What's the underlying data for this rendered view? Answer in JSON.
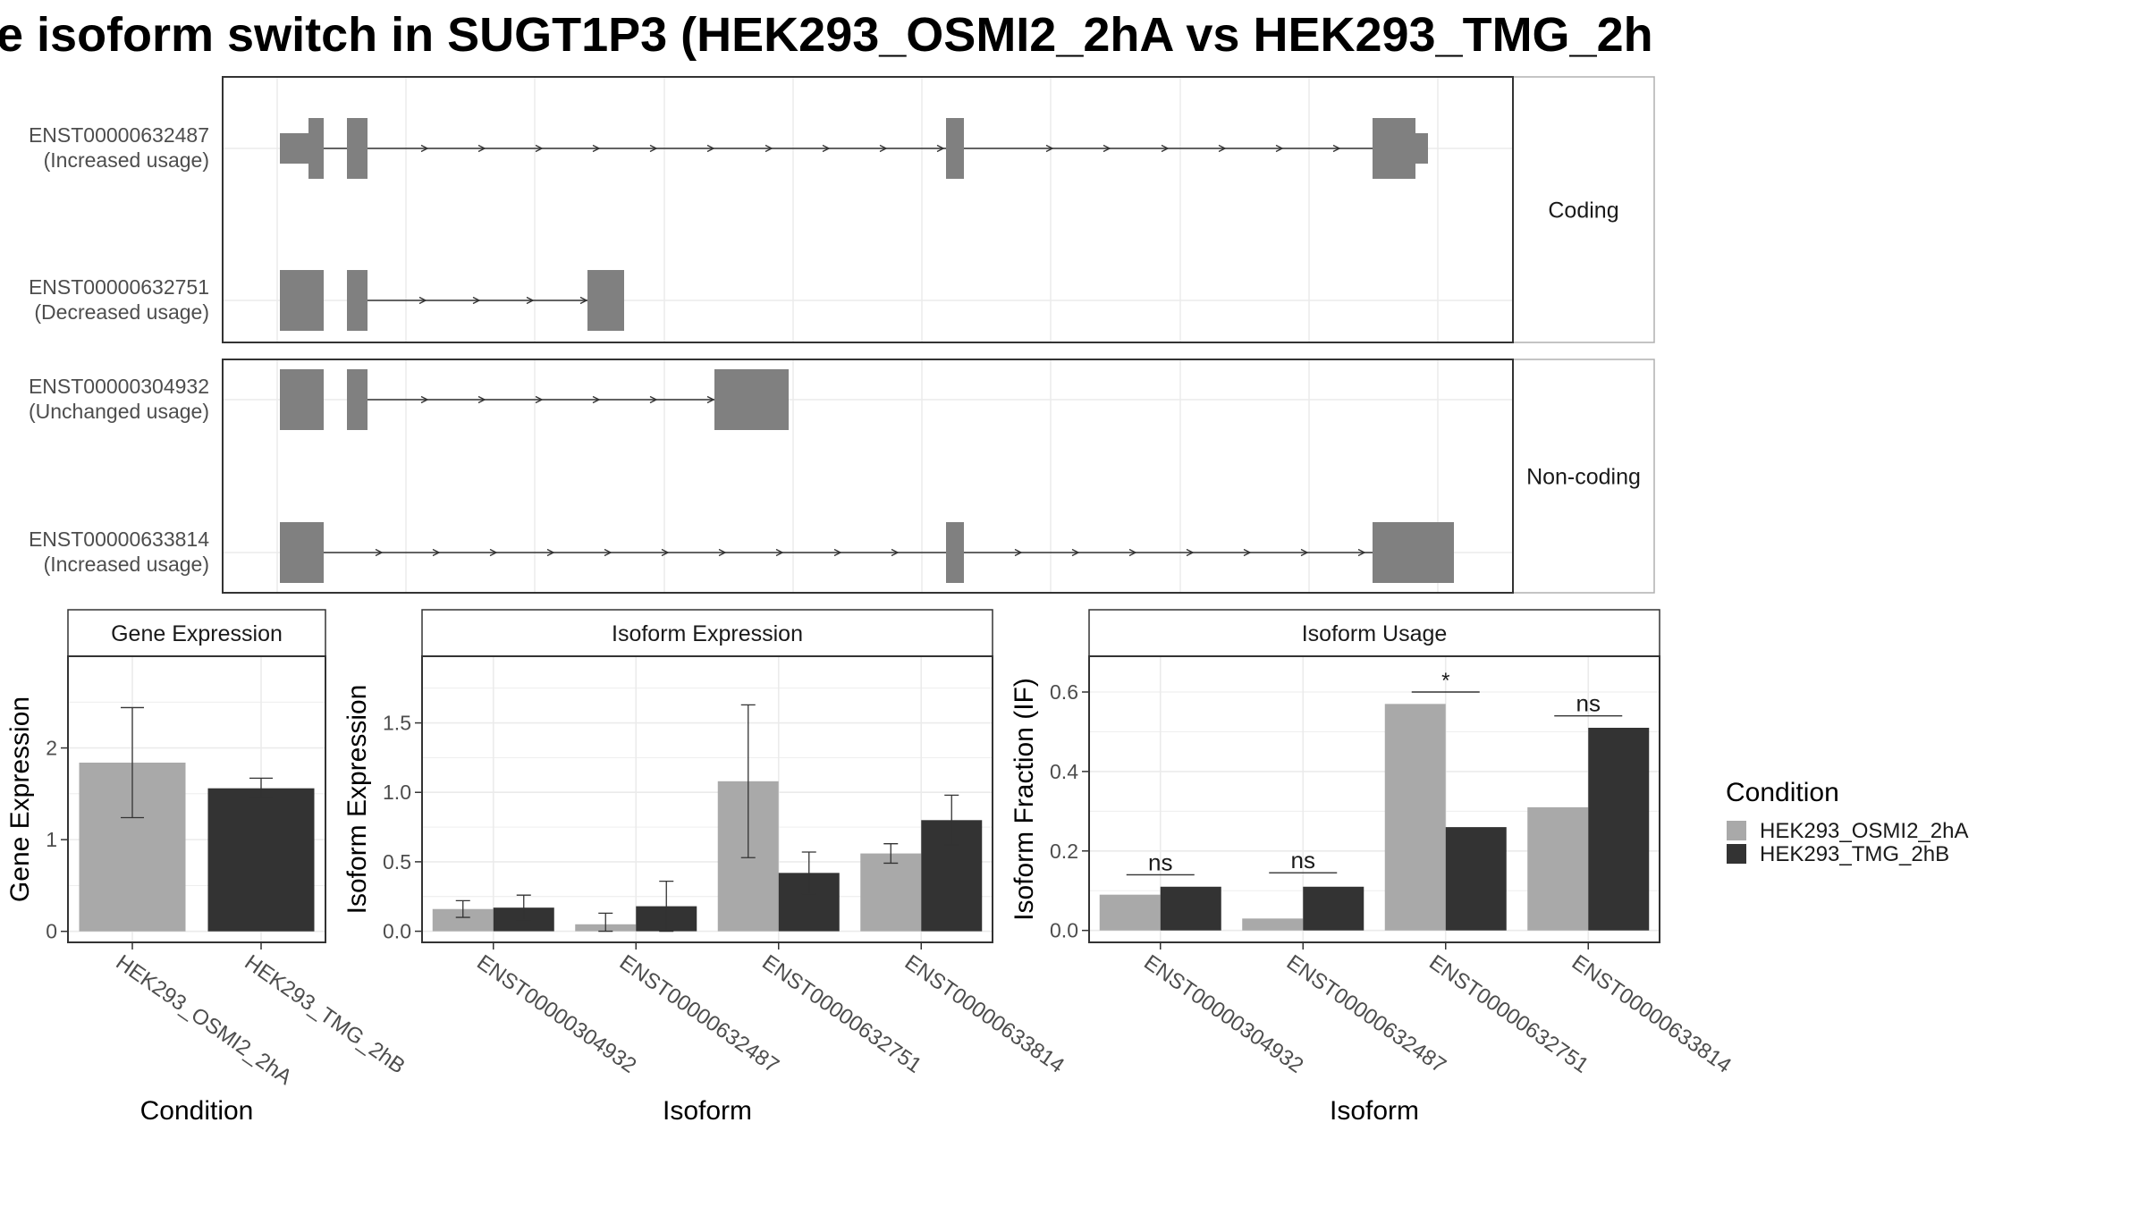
{
  "title": "e isoform switch in SUGT1P3 (HEK293_OSMI2_2hA vs HEK293_TMG_2h",
  "colors": {
    "cond_a": "#A9A9A9",
    "cond_b": "#333333",
    "exon": "#808080",
    "grid": "#EBEBEB",
    "panel_border": "#333333",
    "strip_border": "#B0B0B0"
  },
  "structure": {
    "facets": [
      {
        "label": "Coding",
        "isoforms": [
          {
            "id": "ENST00000632487",
            "usage": "(Increased usage)"
          },
          {
            "id": "ENST00000632751",
            "usage": "(Decreased usage)"
          }
        ]
      },
      {
        "label": "Non-coding",
        "isoforms": [
          {
            "id": "ENST00000304932",
            "usage": "(Unchanged usage)"
          },
          {
            "id": "ENST00000633814",
            "usage": "(Increased usage)"
          }
        ]
      }
    ]
  },
  "legend": {
    "title": "Condition",
    "items": [
      "HEK293_OSMI2_2hA",
      "HEK293_TMG_2hB"
    ]
  },
  "chart_data": [
    {
      "type": "bar",
      "title": "Gene Expression",
      "xlabel": "Condition",
      "ylabel": "Gene Expression",
      "categories": [
        "HEK293_OSMI2_2hA",
        "HEK293_TMG_2hB"
      ],
      "values": [
        1.84,
        1.56
      ],
      "errors": [
        [
          1.24,
          2.44
        ],
        [
          1.46,
          1.67
        ]
      ],
      "yticks": [
        "0",
        "1",
        "2"
      ],
      "ylim": [
        -0.12,
        3.0
      ]
    },
    {
      "type": "bar",
      "title": "Isoform Expression",
      "xlabel": "Isoform",
      "ylabel": "Isoform Expression",
      "categories": [
        "ENST00000304932",
        "ENST00000632487",
        "ENST00000632751",
        "ENST00000633814"
      ],
      "series": [
        {
          "name": "HEK293_OSMI2_2hA",
          "values": [
            0.16,
            0.05,
            1.08,
            0.56
          ],
          "errors": [
            [
              0.1,
              0.22
            ],
            [
              0.0,
              0.13
            ],
            [
              0.53,
              1.63
            ],
            [
              0.49,
              0.63
            ]
          ]
        },
        {
          "name": "HEK293_TMG_2hB",
          "values": [
            0.17,
            0.18,
            0.42,
            0.8
          ],
          "errors": [
            [
              0.08,
              0.26
            ],
            [
              0.0,
              0.36
            ],
            [
              0.27,
              0.57
            ],
            [
              0.62,
              0.98
            ]
          ]
        }
      ],
      "yticks": [
        "0.0",
        "0.5",
        "1.0",
        "1.5"
      ],
      "ylim": [
        -0.08,
        1.98
      ]
    },
    {
      "type": "bar",
      "title": "Isoform Usage",
      "xlabel": "Isoform",
      "ylabel": "Isoform Fraction (IF)",
      "categories": [
        "ENST00000304932",
        "ENST00000632487",
        "ENST00000632751",
        "ENST00000633814"
      ],
      "series": [
        {
          "name": "HEK293_OSMI2_2hA",
          "values": [
            0.09,
            0.03,
            0.57,
            0.31
          ]
        },
        {
          "name": "HEK293_TMG_2hB",
          "values": [
            0.11,
            0.11,
            0.26,
            0.51
          ]
        }
      ],
      "significance": [
        "ns",
        "ns",
        "*",
        "ns"
      ],
      "significance_level": [
        0.14,
        0.145,
        0.6,
        0.54
      ],
      "yticks": [
        "0.0",
        "0.2",
        "0.4",
        "0.6"
      ],
      "ylim": [
        -0.03,
        0.69
      ]
    }
  ]
}
